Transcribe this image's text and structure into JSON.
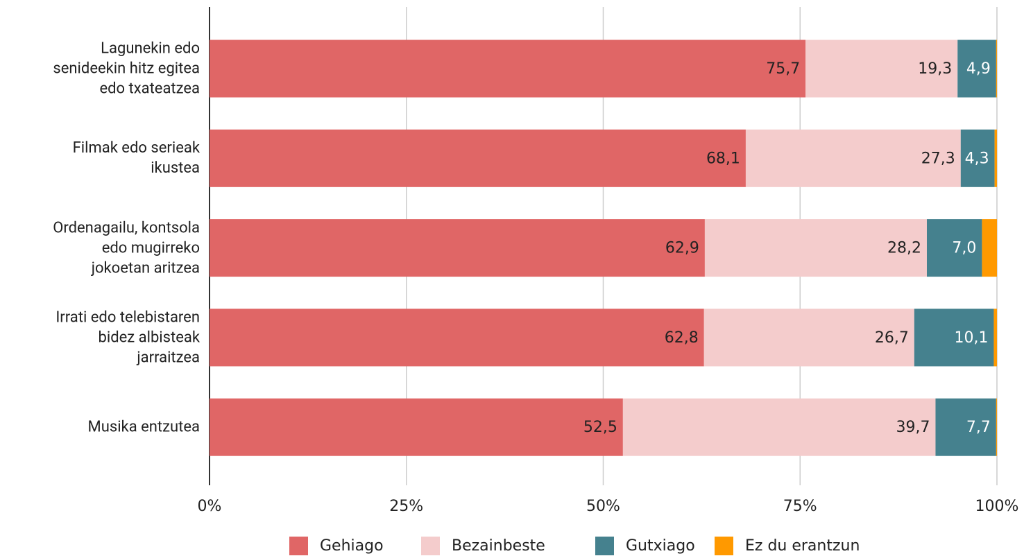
{
  "chart_data": {
    "type": "stacked_bar_horizontal",
    "categories": [
      "Lagunekin edo\nsenideekin hitz egitea\nedo txateatzea",
      "Filmak edo serieak\nikustea",
      "Ordenagailu, kontsola\nedo mugirreko\njokoetan aritzea",
      "Irrati edo telebistaren\nbidez albisteak\njarraitzea",
      "Musika entzutea"
    ],
    "series": [
      {
        "name": "Gehiago",
        "color": "#e06666",
        "values": [
          75.7,
          68.1,
          62.9,
          62.8,
          52.5
        ],
        "value_labels": [
          "75,7",
          "68,1",
          "62,9",
          "62,8",
          "52,5"
        ]
      },
      {
        "name": "Bezainbeste",
        "color": "#f4cccc",
        "values": [
          19.3,
          27.3,
          28.2,
          26.7,
          39.7
        ],
        "value_labels": [
          "19,3",
          "27,3",
          "28,2",
          "26,7",
          "39,7"
        ]
      },
      {
        "name": "Gutxiago",
        "color": "#45818e",
        "values": [
          4.9,
          4.3,
          7.0,
          10.1,
          7.7
        ],
        "value_labels": [
          "4,9",
          "4,3",
          "7,0",
          "10,1",
          "7,7"
        ]
      },
      {
        "name": "Ez du erantzun",
        "color": "#ff9900",
        "values": [
          0.1,
          0.3,
          1.9,
          0.4,
          0.1
        ]
      }
    ],
    "xlim": [
      0,
      100
    ],
    "xticks": [
      {
        "value": 0,
        "label": "0%"
      },
      {
        "value": 25,
        "label": "25%"
      },
      {
        "value": 50,
        "label": "50%"
      },
      {
        "value": 75,
        "label": "75%"
      },
      {
        "value": 100,
        "label": "100%"
      }
    ],
    "grid": true,
    "legend": "bottom"
  }
}
